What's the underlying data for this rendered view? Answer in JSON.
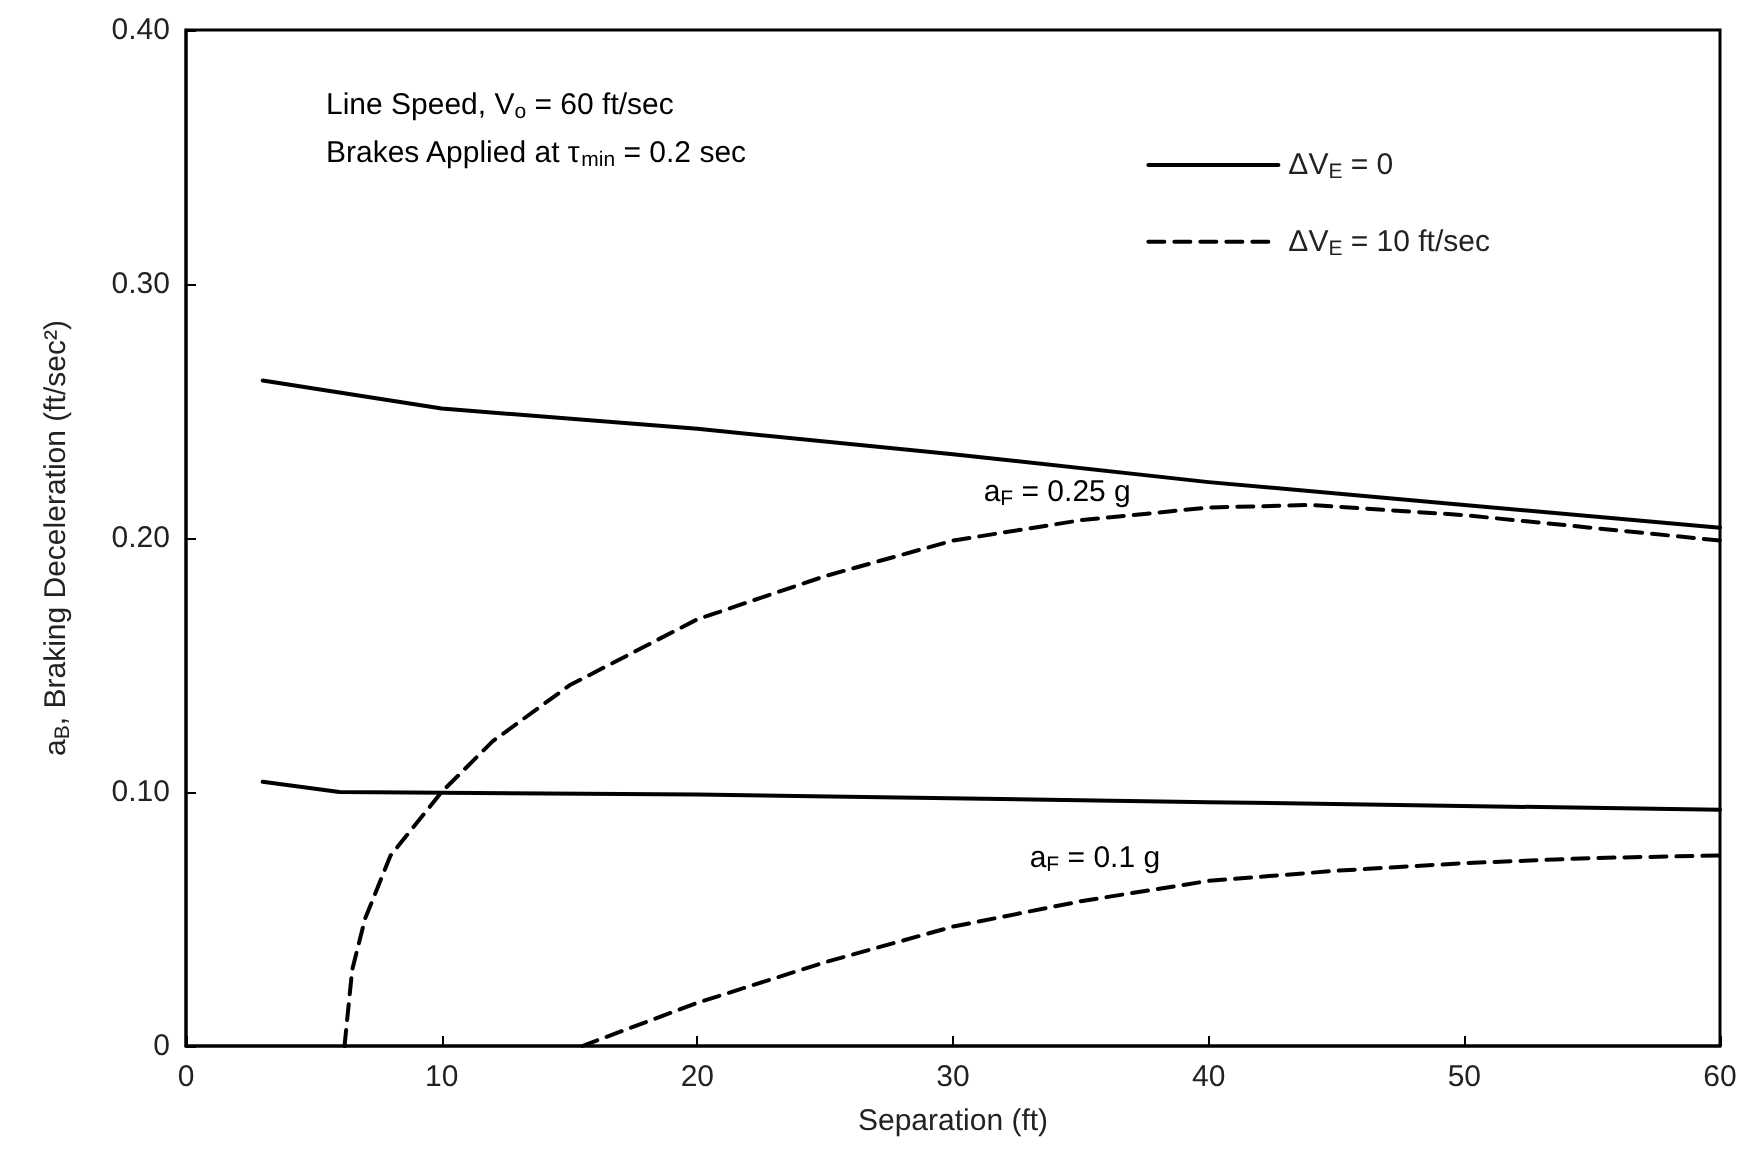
{
  "chart_data": {
    "type": "line",
    "xlabel": "Separation (ft)",
    "ylabel": "a$_{B}$, Braking Deceleration (ft/sec²)",
    "xlim": [
      0,
      60
    ],
    "xticks": [
      0,
      10,
      20,
      30,
      40,
      50,
      60
    ],
    "ylim": [
      0,
      0.4
    ],
    "yticks": [
      0,
      {
        "value": 0.1,
        "label": "0.10"
      },
      {
        "value": 0.2,
        "label": "0.20"
      },
      {
        "value": 0.3,
        "label": "0.30"
      },
      {
        "value": 0.4,
        "label": "0.40"
      }
    ],
    "grid": false,
    "legend": "top right",
    "marker": "none",
    "series": [
      {
        "name": "ΔV$_{E}$ = 0",
        "color": "#000000",
        "line_style": "solid",
        "x": [
          3,
          10,
          20,
          30,
          40,
          50,
          60
        ],
        "values": [
          0.262,
          0.251,
          0.243,
          0.233,
          0.222,
          0.213,
          0.204
        ]
      },
      {
        "name": "ΔV$_{E}$ = 10 ft/sec",
        "color": "#000000",
        "line_style": "dashed",
        "x": [
          6.2,
          6.5,
          7,
          8,
          10,
          12,
          15,
          20,
          25,
          30,
          35,
          40,
          44,
          50,
          55,
          60
        ],
        "values": [
          0,
          0.03,
          0.05,
          0.075,
          0.1,
          0.12,
          0.142,
          0.168,
          0.185,
          0.199,
          0.207,
          0.212,
          0.213,
          0.209,
          0.204,
          0.199
        ]
      },
      {
        "color": "#000000",
        "line_style": "solid",
        "x": [
          3,
          6,
          20,
          40,
          60
        ],
        "values": [
          0.104,
          0.1,
          0.099,
          0.096,
          0.093
        ]
      },
      {
        "color": "#000000",
        "line_style": "dashed",
        "x": [
          15.5,
          20,
          25,
          30,
          35,
          40,
          45,
          50,
          55,
          60
        ],
        "values": [
          0,
          0.017,
          0.033,
          0.047,
          0.057,
          0.065,
          0.069,
          0.072,
          0.074,
          0.075
        ]
      }
    ],
    "annotations": [
      "Line Speed, V$_{o}$ = 60 ft/sec",
      "Brakes Applied at τ$_{min}$ = 0.2 sec",
      "a$_{F}$ = 0.25 g",
      "a$_{F}$ = 0.1 g"
    ]
  }
}
